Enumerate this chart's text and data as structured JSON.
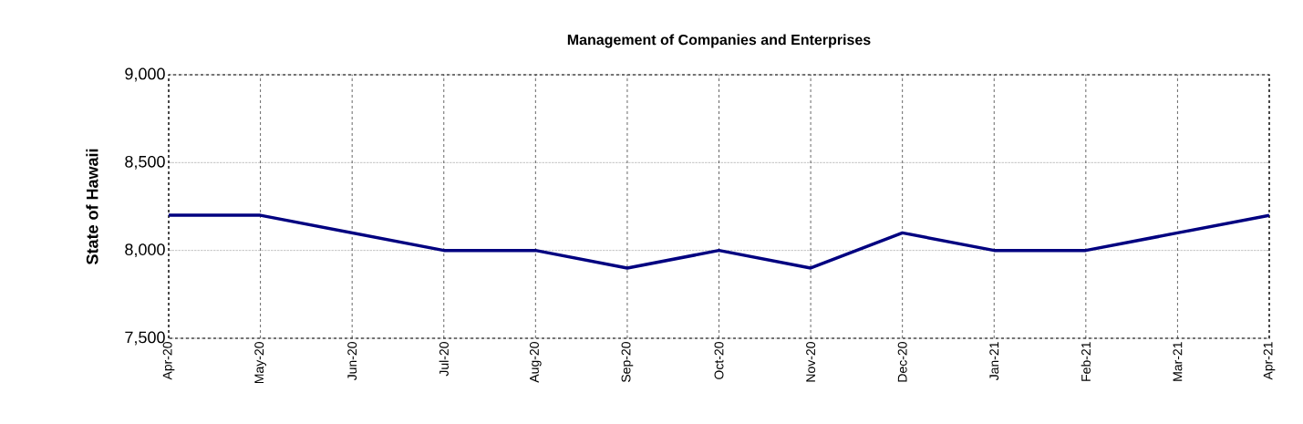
{
  "chart_data": {
    "type": "line",
    "title": "Management of Companies and Enterprises",
    "ylabel": "State of Hawaii",
    "categories": [
      "Apr-20",
      "May-20",
      "Jun-20",
      "Jul-20",
      "Aug-20",
      "Sep-20",
      "Oct-20",
      "Nov-20",
      "Dec-20",
      "Jan-21",
      "Feb-21",
      "Mar-21",
      "Apr-21"
    ],
    "values": [
      8200,
      8200,
      8100,
      8000,
      8000,
      7900,
      8000,
      7900,
      8100,
      8000,
      8000,
      8100,
      8200
    ],
    "color": "#000080",
    "ylim": [
      7500,
      9000
    ],
    "yticks": [
      {
        "value": 7500,
        "label": "7,500"
      },
      {
        "value": 8000,
        "label": "8,000"
      },
      {
        "value": 8500,
        "label": "8,500"
      },
      {
        "value": 9000,
        "label": "9,000"
      }
    ],
    "grid": true,
    "marker": "none",
    "line_style": "solid"
  }
}
